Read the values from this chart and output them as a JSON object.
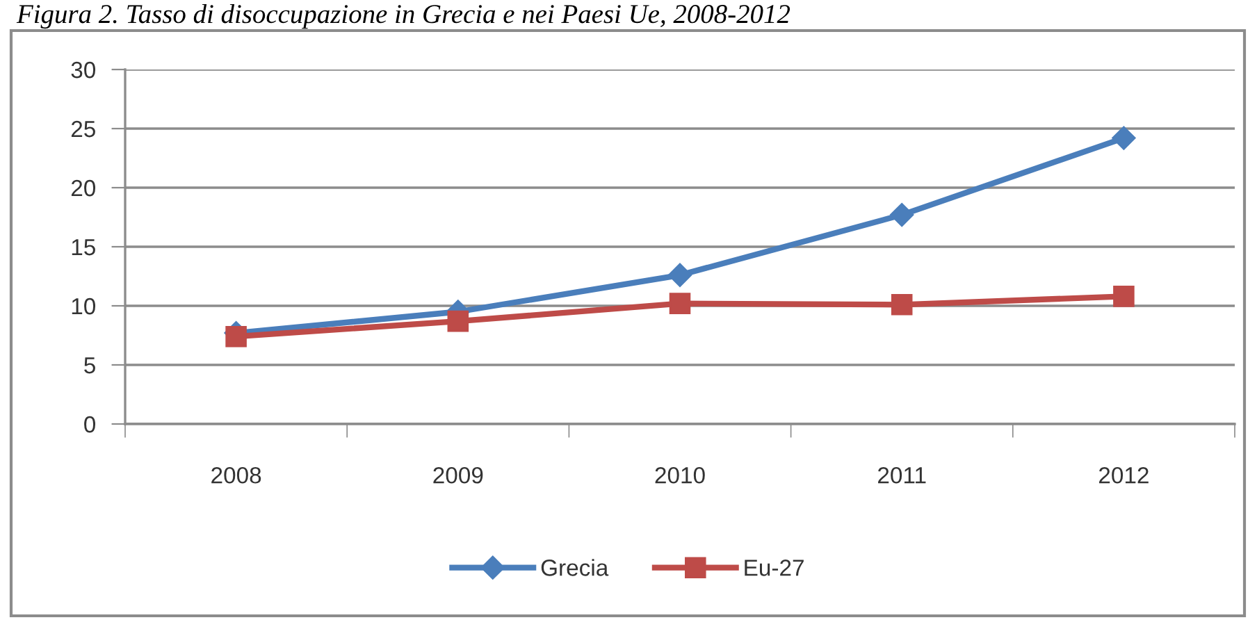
{
  "chart_data": {
    "type": "line",
    "title": "Figura 2. Tasso di disoccupazione in Grecia e nei Paesi Ue, 2008-2012",
    "categories": [
      "2008",
      "2009",
      "2010",
      "2011",
      "2012"
    ],
    "series": [
      {
        "name": "Grecia",
        "color": "#4a7ebb",
        "marker": "diamond",
        "values": [
          7.7,
          9.5,
          12.6,
          17.7,
          24.2
        ]
      },
      {
        "name": "Eu-27",
        "color": "#be4b48",
        "marker": "square",
        "values": [
          7.4,
          8.7,
          10.2,
          10.1,
          10.8
        ]
      }
    ],
    "ylim": [
      0,
      30
    ],
    "yticks": [
      0,
      5,
      10,
      15,
      20,
      25,
      30
    ],
    "grid": "y",
    "legend": "bottom",
    "line_style": "solid"
  }
}
